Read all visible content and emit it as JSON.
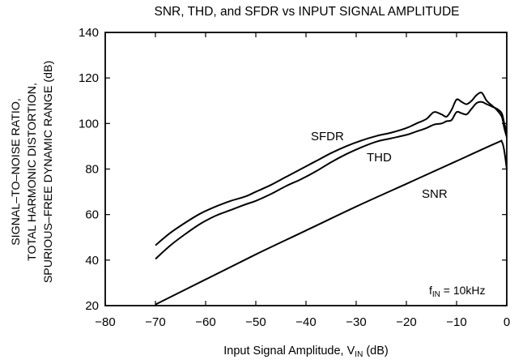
{
  "chart_data": {
    "type": "line",
    "title": "SNR, THD, and SFDR vs INPUT SIGNAL AMPLITUDE",
    "xlabel": {
      "main": "Input Signal Amplitude, V",
      "sub": "IN",
      "unit": " (dB)"
    },
    "ylabel": [
      "SIGNAL–TO–NOISE RATIO,",
      "TOTAL HARMONIC DISTORTION,",
      "SPURIOUS–FREE DYNAMIC RANGE (dB)"
    ],
    "xlim": [
      -80,
      0
    ],
    "ylim": [
      20,
      140
    ],
    "xticks": [
      -80,
      -70,
      -60,
      -50,
      -40,
      -30,
      -20,
      -10,
      0
    ],
    "xtick_labels": [
      "−80",
      "−70",
      "−60",
      "−50",
      "−40",
      "−30",
      "−20",
      "−10",
      "0"
    ],
    "yticks": [
      20,
      40,
      60,
      80,
      100,
      120,
      140
    ],
    "grid": false,
    "legend": "none (labels placed next to curves)",
    "annotation": {
      "main": "f",
      "sub": "IN",
      "rest": " = 10kHz"
    },
    "series": [
      {
        "name": "SFDR",
        "x": [
          -70,
          -67,
          -64,
          -61,
          -58,
          -55,
          -52,
          -50,
          -47,
          -44,
          -41,
          -38,
          -35,
          -32,
          -29,
          -26,
          -23,
          -20,
          -18,
          -16,
          -14.5,
          -13,
          -12,
          -11,
          -10,
          -9,
          -8,
          -7,
          -6,
          -5,
          -4,
          -3,
          -2,
          -1,
          -0.5,
          0
        ],
        "y": [
          46.5,
          52,
          56.5,
          60.5,
          63.5,
          66,
          68,
          70,
          73,
          76.5,
          80,
          83.5,
          87,
          90,
          92.5,
          94.5,
          96,
          98,
          100,
          102,
          105,
          104,
          103,
          106,
          110.5,
          109.5,
          108.5,
          110,
          112.5,
          113.5,
          110,
          108,
          106,
          103,
          98,
          94
        ]
      },
      {
        "name": "THD",
        "x": [
          -70,
          -67,
          -64,
          -61,
          -58,
          -55,
          -52,
          -50,
          -47,
          -44,
          -41,
          -38,
          -35,
          -32,
          -29,
          -26,
          -23,
          -20,
          -18,
          -16,
          -14.5,
          -13,
          -12,
          -11,
          -10,
          -9,
          -8,
          -7,
          -6,
          -5,
          -4,
          -3,
          -2,
          -1,
          -0.5,
          0
        ],
        "y": [
          40.5,
          46.5,
          51.5,
          56,
          59.5,
          62,
          64.5,
          66,
          69,
          72.5,
          75.5,
          79,
          83,
          86.5,
          89.5,
          92,
          93.5,
          95,
          96.5,
          98,
          99.5,
          100,
          101,
          101.5,
          105,
          104.5,
          104,
          106.5,
          109,
          109.5,
          108.5,
          107.5,
          106.5,
          104.5,
          100,
          96
        ]
      },
      {
        "name": "SNR",
        "x": [
          -70,
          -60,
          -50,
          -40,
          -30,
          -20,
          -10,
          -2,
          -1,
          -0.5,
          0
        ],
        "y": [
          20.5,
          31.5,
          42.5,
          53,
          63.5,
          73.5,
          83.5,
          91.5,
          92,
          88,
          80
        ]
      }
    ]
  }
}
